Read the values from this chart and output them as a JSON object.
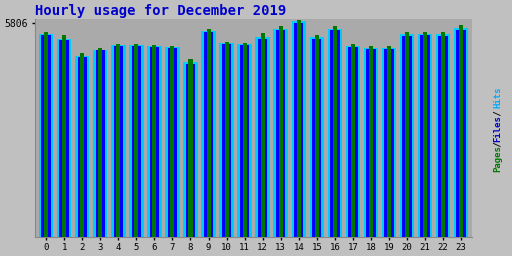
{
  "title": "Hourly usage for December 2019",
  "hours": [
    0,
    1,
    2,
    3,
    4,
    5,
    6,
    7,
    8,
    9,
    10,
    11,
    12,
    13,
    14,
    15,
    16,
    17,
    18,
    19,
    20,
    21,
    22,
    23
  ],
  "hits": [
    5500,
    5360,
    4920,
    5080,
    5200,
    5200,
    5180,
    5150,
    4750,
    5590,
    5250,
    5240,
    5430,
    5640,
    5860,
    5410,
    5640,
    5190,
    5130,
    5130,
    5500,
    5510,
    5500,
    5660
  ],
  "files": [
    5480,
    5330,
    4890,
    5060,
    5170,
    5165,
    5155,
    5130,
    4700,
    5560,
    5220,
    5210,
    5380,
    5600,
    5800,
    5370,
    5600,
    5150,
    5090,
    5095,
    5460,
    5470,
    5460,
    5620
  ],
  "pages": [
    5560,
    5480,
    4980,
    5130,
    5230,
    5220,
    5210,
    5190,
    4830,
    5630,
    5280,
    5270,
    5520,
    5710,
    5870,
    5470,
    5710,
    5225,
    5170,
    5175,
    5560,
    5565,
    5560,
    5750
  ],
  "hits_color": "#00ccff",
  "files_color": "#0000ff",
  "pages_color": "#007700",
  "bg_color": "#c0c0c0",
  "plot_bg_color": "#aaaaaa",
  "title_color": "#0000cc",
  "ylabel_color_pages": "#007700",
  "ylabel_color_files": "#0000cc",
  "ylabel_color_hits": "#00aaff",
  "ymin": 0,
  "ymax": 5900,
  "ytick_val": 5806,
  "ytick_label": "5806",
  "bar_width": 0.8
}
